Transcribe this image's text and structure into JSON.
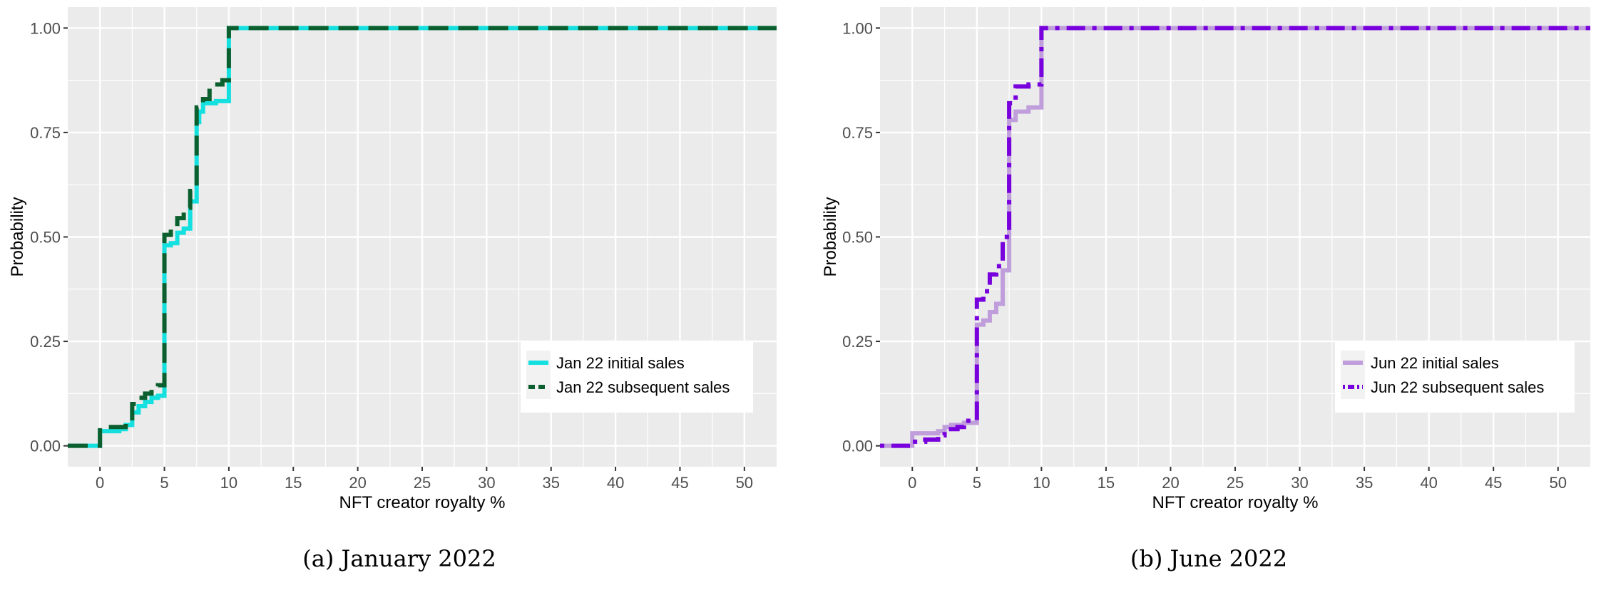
{
  "chart_data": [
    {
      "type": "line",
      "subtype": "ecdf-step",
      "caption": "(a) January 2022",
      "xlabel": "NFT creator royalty %",
      "ylabel": "Probability",
      "xlim": [
        -2.5,
        52.5
      ],
      "ylim": [
        -0.05,
        1.05
      ],
      "xticks": [
        "0",
        "5",
        "10",
        "15",
        "20",
        "25",
        "30",
        "35",
        "40",
        "45",
        "50"
      ],
      "yticks": [
        "0.00",
        "0.25",
        "0.50",
        "0.75",
        "1.00"
      ],
      "grid": true,
      "legend_position": "bottom-right",
      "series": [
        {
          "name": "Jan 22 initial sales",
          "color": "#14E0E0",
          "style": "solid",
          "x": [
            -2.5,
            0,
            1.5,
            2,
            2.5,
            3,
            3.5,
            4,
            4.5,
            5,
            5.5,
            6,
            6.5,
            7,
            7.5,
            7.7,
            8,
            9,
            10,
            52.5
          ],
          "y": [
            0,
            0.035,
            0.04,
            0.05,
            0.08,
            0.095,
            0.105,
            0.115,
            0.12,
            0.48,
            0.485,
            0.51,
            0.52,
            0.585,
            0.775,
            0.8,
            0.82,
            0.825,
            1,
            1
          ]
        },
        {
          "name": "Jan 22 subsequent sales",
          "color": "#0B5E2E",
          "style": "dashed",
          "x": [
            -2.5,
            0,
            1.5,
            2,
            2.5,
            3,
            3.5,
            4,
            4.5,
            5,
            5.5,
            6,
            6.5,
            7,
            7.5,
            8,
            8.5,
            9.5,
            10,
            52.5
          ],
          "y": [
            0,
            0.045,
            0.045,
            0.055,
            0.1,
            0.115,
            0.125,
            0.14,
            0.145,
            0.505,
            0.52,
            0.545,
            0.57,
            0.61,
            0.81,
            0.83,
            0.865,
            0.875,
            1,
            1
          ]
        }
      ]
    },
    {
      "type": "line",
      "subtype": "ecdf-step",
      "caption": "(b) June 2022",
      "xlabel": "NFT creator royalty %",
      "ylabel": "Probability",
      "xlim": [
        -2.5,
        52.5
      ],
      "ylim": [
        -0.05,
        1.05
      ],
      "xticks": [
        "0",
        "5",
        "10",
        "15",
        "20",
        "25",
        "30",
        "35",
        "40",
        "45",
        "50"
      ],
      "yticks": [
        "0.00",
        "0.25",
        "0.50",
        "0.75",
        "1.00"
      ],
      "grid": true,
      "legend_position": "bottom-right",
      "series": [
        {
          "name": "Jun 22 initial sales",
          "color": "#C09EDC",
          "style": "solid",
          "x": [
            -2.5,
            0,
            2,
            2.5,
            3,
            4,
            5,
            5.5,
            6,
            6.5,
            7,
            7.5,
            8,
            9,
            10,
            52.5
          ],
          "y": [
            0,
            0.03,
            0.035,
            0.045,
            0.05,
            0.055,
            0.29,
            0.3,
            0.32,
            0.34,
            0.42,
            0.78,
            0.8,
            0.81,
            1,
            1
          ]
        },
        {
          "name": "Jun 22 subsequent sales",
          "color": "#7700DD",
          "style": "dotdash",
          "x": [
            -2.5,
            0,
            1,
            2,
            2.5,
            3.5,
            4,
            5,
            5.5,
            6,
            6.5,
            7,
            7.5,
            8,
            9,
            10,
            52.5
          ],
          "y": [
            0,
            0.01,
            0.015,
            0.025,
            0.04,
            0.045,
            0.06,
            0.35,
            0.37,
            0.41,
            0.43,
            0.5,
            0.82,
            0.86,
            0.865,
            1,
            1
          ]
        }
      ]
    }
  ]
}
